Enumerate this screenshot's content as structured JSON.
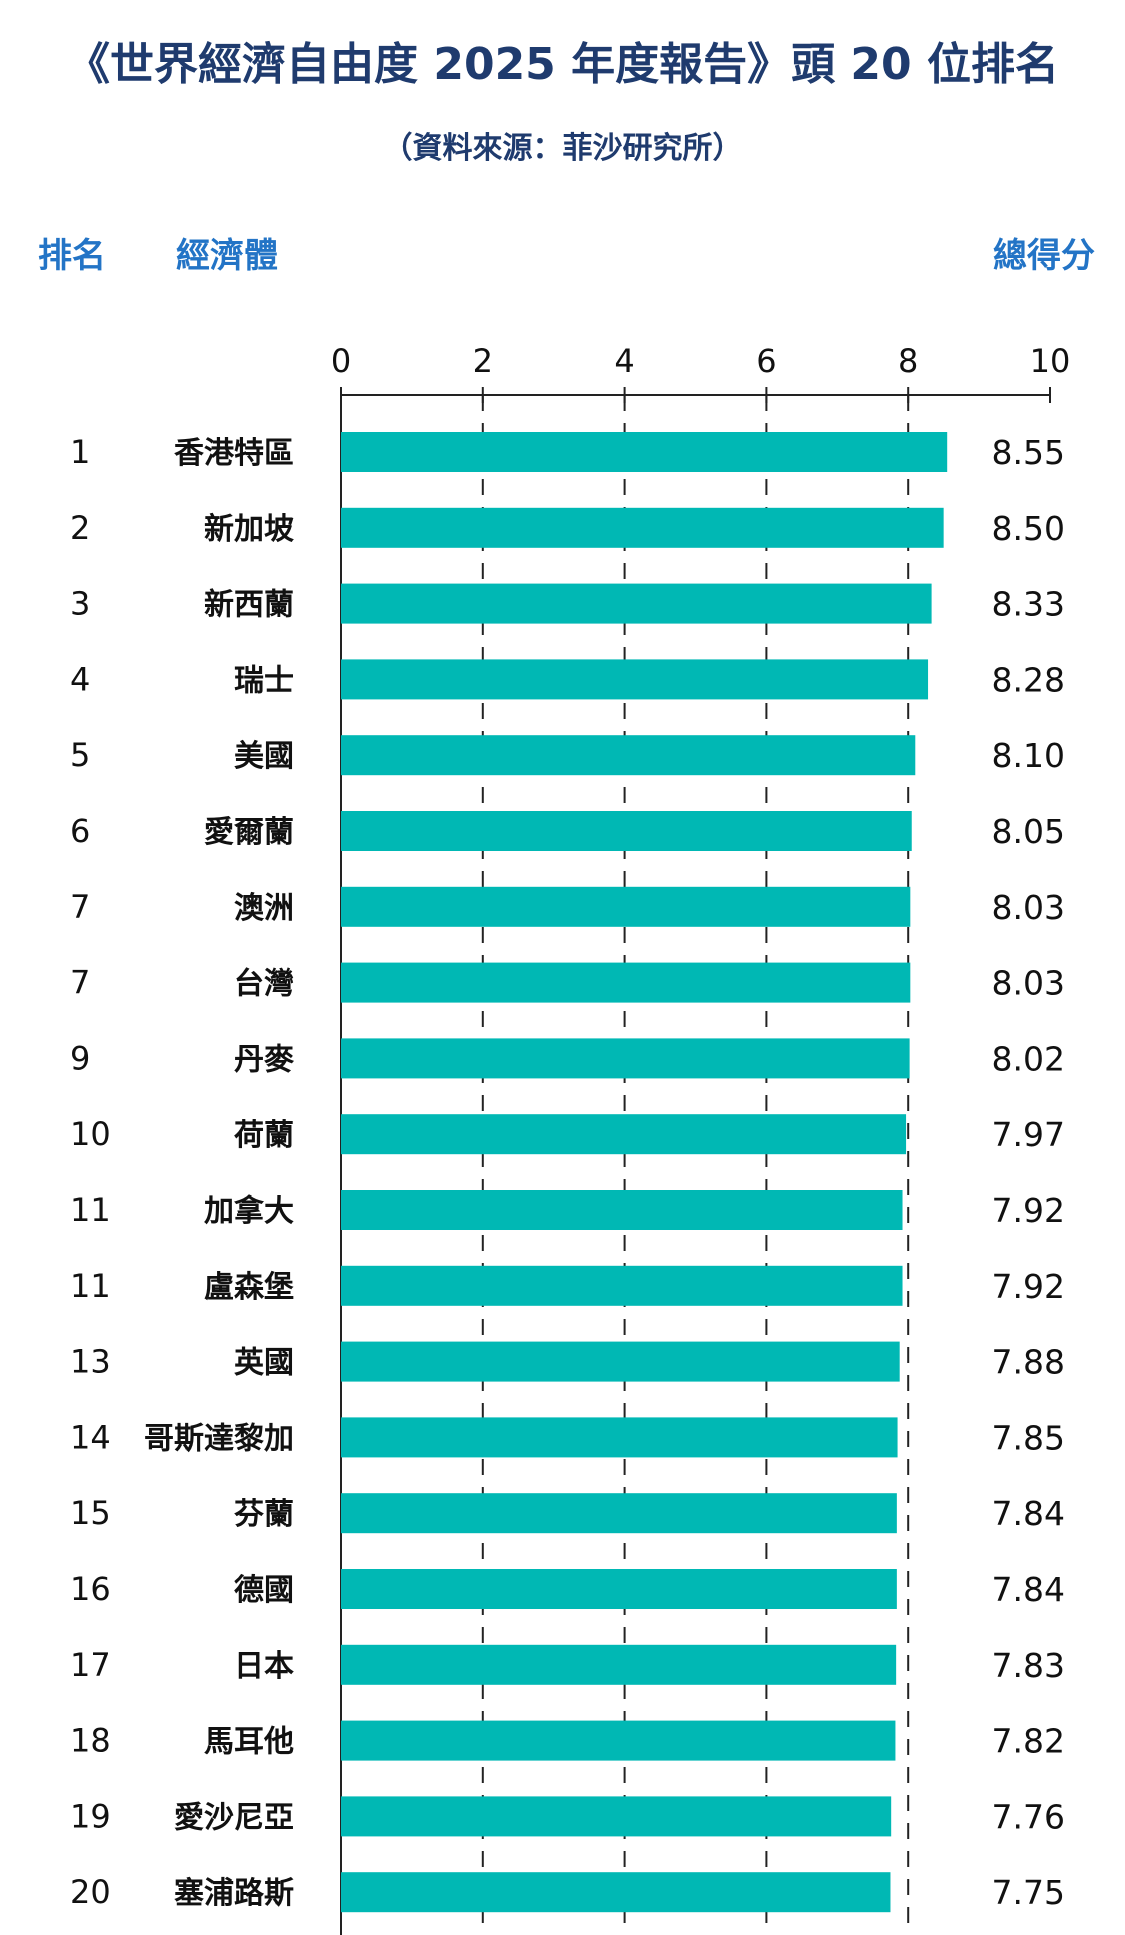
{
  "header": {
    "title": "《世界經濟自由度 2025 年度報告》頭 20 位排名",
    "subtitle": "（資料來源：菲沙研究所）",
    "col_rank": "排名",
    "col_economy": "經濟體",
    "col_score": "總得分"
  },
  "colors": {
    "bar": "#00b8b4",
    "title": "#1f3b6e",
    "column_header": "#2374c6",
    "grid": "#222222"
  },
  "chart_data": {
    "type": "bar",
    "orientation": "horizontal",
    "title": "《世界經濟自由度 2025 年度報告》頭 20 位排名",
    "subtitle": "（資料來源：菲沙研究所）",
    "xlim": [
      0,
      10
    ],
    "xticks": [
      0,
      2,
      4,
      6,
      8,
      10
    ],
    "grid": "vertical dashed",
    "ranks": [
      "1",
      "2",
      "3",
      "4",
      "5",
      "6",
      "7",
      "7",
      "9",
      "10",
      "11",
      "11",
      "13",
      "14",
      "15",
      "16",
      "17",
      "18",
      "19",
      "20"
    ],
    "categories": [
      "香港特區",
      "新加坡",
      "新西蘭",
      "瑞士",
      "美國",
      "愛爾蘭",
      "澳洲",
      "台灣",
      "丹麥",
      "荷蘭",
      "加拿大",
      "盧森堡",
      "英國",
      "哥斯達黎加",
      "芬蘭",
      "德國",
      "日本",
      "馬耳他",
      "愛沙尼亞",
      "塞浦路斯"
    ],
    "values": [
      8.55,
      8.5,
      8.33,
      8.28,
      8.1,
      8.05,
      8.03,
      8.03,
      8.02,
      7.97,
      7.92,
      7.92,
      7.88,
      7.85,
      7.84,
      7.84,
      7.83,
      7.82,
      7.76,
      7.75
    ],
    "value_labels": [
      "8.55",
      "8.50",
      "8.33",
      "8.28",
      "8.10",
      "8.05",
      "8.03",
      "8.03",
      "8.02",
      "7.97",
      "7.92",
      "7.92",
      "7.88",
      "7.85",
      "7.84",
      "7.84",
      "7.83",
      "7.82",
      "7.76",
      "7.75"
    ]
  }
}
